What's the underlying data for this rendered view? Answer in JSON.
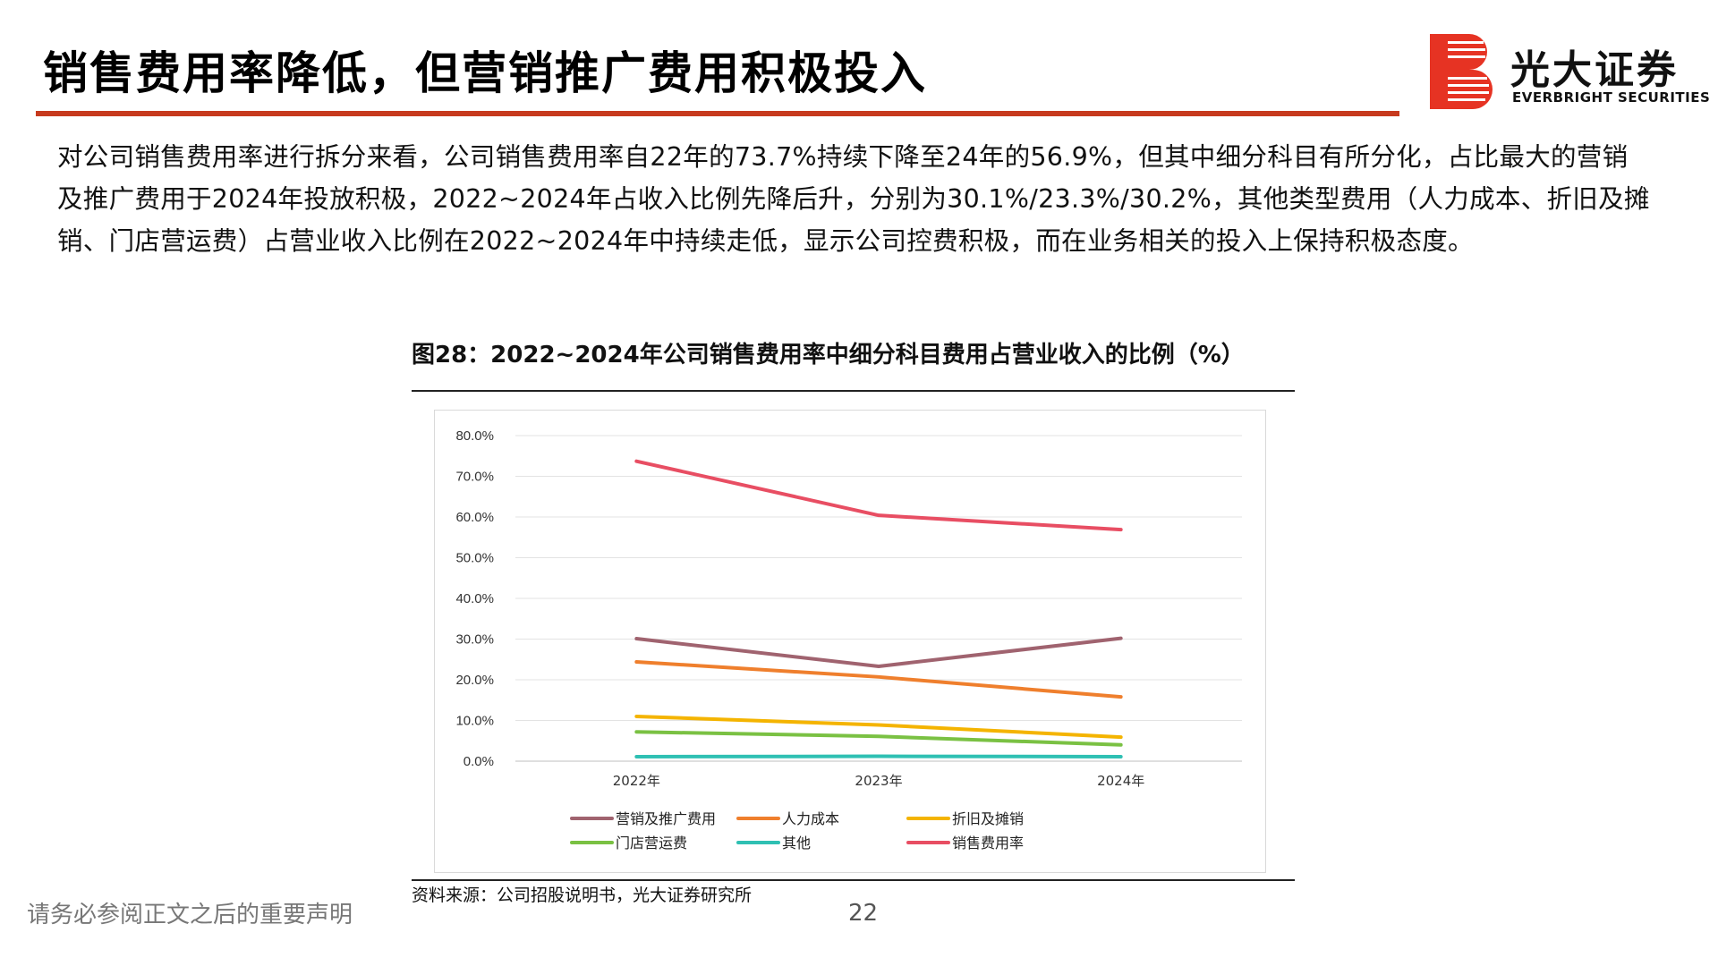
{
  "header": {
    "title": "销售费用率降低，但营销推广费用积极投入",
    "brand_cn": "光大证券",
    "brand_en": "EVERBRIGHT SECURITIES"
  },
  "body": {
    "paragraph": "对公司销售费用率进行拆分来看，公司销售费用率自22年的73.7%持续下降至24年的56.9%，但其中细分科目有所分化，占比最大的营销及推广费用于2024年投放积极，2022~2024年占收入比例先降后升，分别为30.1%/23.3%/30.2%，其他类型费用（人力成本、折旧及摊销、门店营运费）占营业收入比例在2022~2024年中持续走低，显示公司控费积极，而在业务相关的投入上保持积极态度。"
  },
  "figure": {
    "caption": "图28：2022~2024年公司销售费用率中细分科目费用占营业收入的比例（%）",
    "source": "资料来源：公司招股说明书，光大证券研究所"
  },
  "footer": {
    "note": "请务必参阅正文之后的重要声明",
    "page": "22"
  },
  "colors": {
    "title_rule": "#c73a1e",
    "logo_red": "#e63323"
  },
  "chart_data": {
    "type": "line",
    "categories": [
      "2022年",
      "2023年",
      "2024年"
    ],
    "ylim": [
      0,
      80
    ],
    "yticks": [
      "0.0%",
      "10.0%",
      "20.0%",
      "30.0%",
      "40.0%",
      "50.0%",
      "60.0%",
      "70.0%",
      "80.0%"
    ],
    "grid": true,
    "legend_position": "bottom",
    "series": [
      {
        "name": "营销及推广费用",
        "color": "#a0636f",
        "values": [
          30.1,
          23.3,
          30.2
        ]
      },
      {
        "name": "人力成本",
        "color": "#ef7f2d",
        "values": [
          24.4,
          20.7,
          15.8
        ]
      },
      {
        "name": "折旧及摊销",
        "color": "#f4b400",
        "values": [
          11.0,
          8.9,
          5.9
        ]
      },
      {
        "name": "门店营运费",
        "color": "#7ac143",
        "values": [
          7.2,
          6.1,
          4.0
        ]
      },
      {
        "name": "其他",
        "color": "#2fc0b3",
        "values": [
          1.1,
          1.2,
          1.1
        ]
      },
      {
        "name": "销售费用率",
        "color": "#e84e63",
        "values": [
          73.7,
          60.4,
          56.9
        ]
      }
    ]
  }
}
